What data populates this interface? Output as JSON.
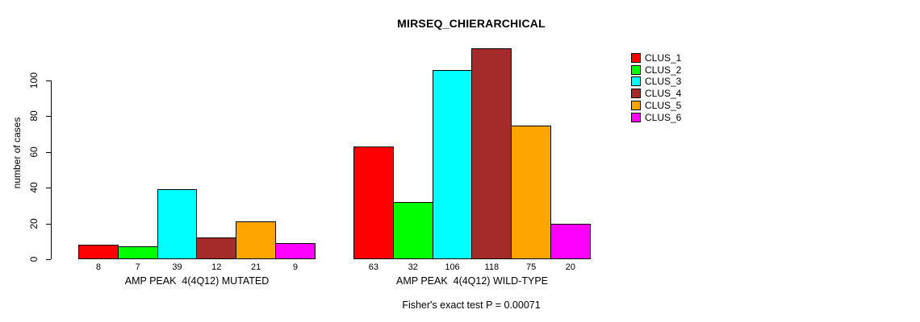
{
  "chart_data": {
    "type": "bar",
    "title": "MIRSEQ_CHIERARCHICAL",
    "ylabel": "number of cases",
    "annotation": "Fisher's exact test P = 0.00071",
    "yticks": [
      0,
      20,
      40,
      60,
      80,
      100
    ],
    "ylim": [
      0,
      120
    ],
    "grid": false,
    "legend_position": "top-right",
    "clusters": [
      {
        "name": "CLUS_1",
        "color": "#FF0000"
      },
      {
        "name": "CLUS_2",
        "color": "#00FF00"
      },
      {
        "name": "CLUS_3",
        "color": "#00FFFF"
      },
      {
        "name": "CLUS_4",
        "color": "#A52A2A"
      },
      {
        "name": "CLUS_5",
        "color": "#FFA500"
      },
      {
        "name": "CLUS_6",
        "color": "#FF00FF"
      }
    ],
    "groups": [
      {
        "label": "AMP PEAK  4(4Q12) MUTATED",
        "values": [
          8,
          7,
          39,
          12,
          21,
          9
        ]
      },
      {
        "label": "AMP PEAK  4(4Q12) WILD-TYPE",
        "values": [
          63,
          32,
          106,
          118,
          75,
          20
        ]
      }
    ]
  }
}
